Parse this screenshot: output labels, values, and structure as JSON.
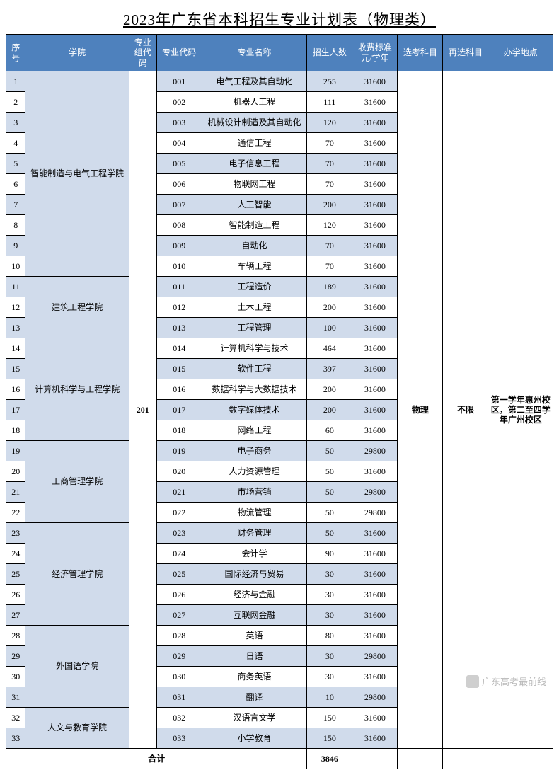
{
  "title": "2023年广东省本科招生专业计划表（物理类）",
  "headers": {
    "idx": "序号",
    "college": "学院",
    "group": "专业组代码",
    "code": "专业代码",
    "name": "专业名称",
    "count": "招生人数",
    "fee": "收费标准元/学年",
    "sel": "选考科目",
    "resel": "再选科目",
    "loc": "办学地点"
  },
  "group_code": "201",
  "sel_subject": "物理",
  "resel_subject": "不限",
  "location": "第一学年惠州校区，第二至四学年广州校区",
  "colleges": [
    {
      "name": "智能制造与电气工程学院",
      "start": 0,
      "span": 10
    },
    {
      "name": "建筑工程学院",
      "start": 10,
      "span": 3
    },
    {
      "name": "计算机科学与工程学院",
      "start": 13,
      "span": 5
    },
    {
      "name": "工商管理学院",
      "start": 18,
      "span": 4
    },
    {
      "name": "经济管理学院",
      "start": 22,
      "span": 5
    },
    {
      "name": "外国语学院",
      "start": 27,
      "span": 4
    },
    {
      "name": "人文与教育学院",
      "start": 31,
      "span": 2
    }
  ],
  "rows": [
    {
      "idx": "1",
      "code": "001",
      "name": "电气工程及其自动化",
      "count": "255",
      "fee": "31600"
    },
    {
      "idx": "2",
      "code": "002",
      "name": "机器人工程",
      "count": "111",
      "fee": "31600"
    },
    {
      "idx": "3",
      "code": "003",
      "name": "机械设计制造及其自动化",
      "count": "120",
      "fee": "31600"
    },
    {
      "idx": "4",
      "code": "004",
      "name": "通信工程",
      "count": "70",
      "fee": "31600"
    },
    {
      "idx": "5",
      "code": "005",
      "name": "电子信息工程",
      "count": "70",
      "fee": "31600"
    },
    {
      "idx": "6",
      "code": "006",
      "name": "物联网工程",
      "count": "70",
      "fee": "31600"
    },
    {
      "idx": "7",
      "code": "007",
      "name": "人工智能",
      "count": "200",
      "fee": "31600"
    },
    {
      "idx": "8",
      "code": "008",
      "name": "智能制造工程",
      "count": "120",
      "fee": "31600"
    },
    {
      "idx": "9",
      "code": "009",
      "name": "自动化",
      "count": "70",
      "fee": "31600"
    },
    {
      "idx": "10",
      "code": "010",
      "name": "车辆工程",
      "count": "70",
      "fee": "31600"
    },
    {
      "idx": "11",
      "code": "011",
      "name": "工程造价",
      "count": "189",
      "fee": "31600"
    },
    {
      "idx": "12",
      "code": "012",
      "name": "土木工程",
      "count": "200",
      "fee": "31600"
    },
    {
      "idx": "13",
      "code": "013",
      "name": "工程管理",
      "count": "100",
      "fee": "31600"
    },
    {
      "idx": "14",
      "code": "014",
      "name": "计算机科学与技术",
      "count": "464",
      "fee": "31600"
    },
    {
      "idx": "15",
      "code": "015",
      "name": "软件工程",
      "count": "397",
      "fee": "31600"
    },
    {
      "idx": "16",
      "code": "016",
      "name": "数据科学与大数据技术",
      "count": "200",
      "fee": "31600"
    },
    {
      "idx": "17",
      "code": "017",
      "name": "数字媒体技术",
      "count": "200",
      "fee": "31600"
    },
    {
      "idx": "18",
      "code": "018",
      "name": "网络工程",
      "count": "60",
      "fee": "31600"
    },
    {
      "idx": "19",
      "code": "019",
      "name": "电子商务",
      "count": "50",
      "fee": "29800"
    },
    {
      "idx": "20",
      "code": "020",
      "name": "人力资源管理",
      "count": "50",
      "fee": "31600"
    },
    {
      "idx": "21",
      "code": "021",
      "name": "市场营销",
      "count": "50",
      "fee": "29800"
    },
    {
      "idx": "22",
      "code": "022",
      "name": "物流管理",
      "count": "50",
      "fee": "29800"
    },
    {
      "idx": "23",
      "code": "023",
      "name": "财务管理",
      "count": "50",
      "fee": "31600"
    },
    {
      "idx": "24",
      "code": "024",
      "name": "会计学",
      "count": "90",
      "fee": "31600"
    },
    {
      "idx": "25",
      "code": "025",
      "name": "国际经济与贸易",
      "count": "30",
      "fee": "31600"
    },
    {
      "idx": "26",
      "code": "026",
      "name": "经济与金融",
      "count": "30",
      "fee": "31600"
    },
    {
      "idx": "27",
      "code": "027",
      "name": "互联网金融",
      "count": "30",
      "fee": "31600"
    },
    {
      "idx": "28",
      "code": "028",
      "name": "英语",
      "count": "80",
      "fee": "31600"
    },
    {
      "idx": "29",
      "code": "029",
      "name": "日语",
      "count": "30",
      "fee": "29800"
    },
    {
      "idx": "30",
      "code": "030",
      "name": "商务英语",
      "count": "30",
      "fee": "31600"
    },
    {
      "idx": "31",
      "code": "031",
      "name": "翻译",
      "count": "10",
      "fee": "29800"
    },
    {
      "idx": "32",
      "code": "032",
      "name": "汉语言文学",
      "count": "150",
      "fee": "31600"
    },
    {
      "idx": "33",
      "code": "033",
      "name": "小学教育",
      "count": "150",
      "fee": "31600"
    }
  ],
  "total_label": "合计",
  "total_count": "3846",
  "watermark": "广东高考最前线",
  "style": {
    "header_bg": "#4e81bd",
    "header_fg": "#ffffff",
    "odd_bg": "#d0dbeb",
    "even_bg": "#ffffff",
    "border": "#000000",
    "title_fontsize": 21,
    "body_fontsize": 12
  }
}
